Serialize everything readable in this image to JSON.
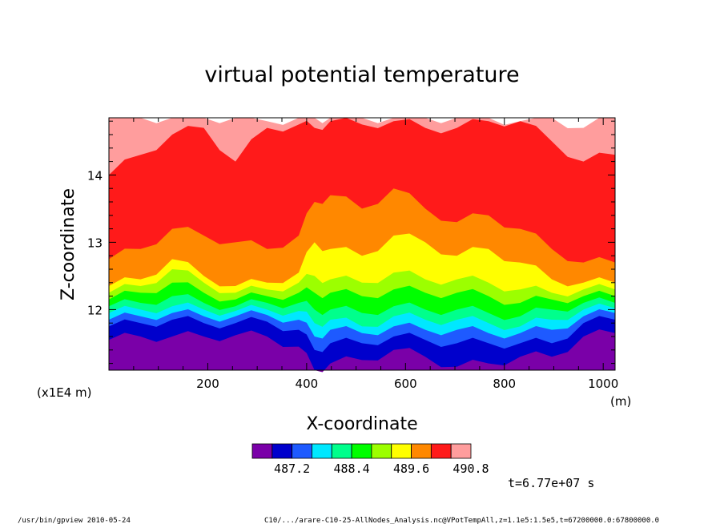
{
  "chart_data": {
    "type": "heatmap",
    "title": "virtual potential temperature",
    "xlabel": "X-coordinate",
    "ylabel": "Z-coordinate",
    "x_unit": "(m)",
    "y_unit": "(x1E4 m)",
    "xlim": [
      0,
      1024
    ],
    "ylim": [
      11.1,
      14.85
    ],
    "x_ticks": [
      "200",
      "400",
      "600",
      "800",
      "1000"
    ],
    "y_ticks": [
      "12",
      "13",
      "14"
    ],
    "x_tick_values": [
      200,
      400,
      600,
      800,
      1000
    ],
    "y_tick_values": [
      12,
      13,
      14
    ],
    "colorbar": {
      "levels": [
        486.8,
        487.2,
        487.6,
        488.0,
        488.4,
        488.8,
        489.2,
        489.6,
        490.0,
        490.4,
        490.8
      ],
      "labels": [
        "487.2",
        "488.4",
        "489.6",
        "490.8"
      ],
      "label_values": [
        487.2,
        488.4,
        489.6,
        490.8
      ],
      "colors": [
        "#7a00a8",
        "#0000cc",
        "#1e5aff",
        "#00e8ff",
        "#00ff8c",
        "#00ff00",
        "#9cff00",
        "#ffff00",
        "#ff8800",
        "#ff1a1a",
        "#ff9d9d"
      ]
    },
    "time_label": "t=6.77e+07 s",
    "band_tops_y": {
      "x": [
        0,
        64,
        128,
        192,
        256,
        320,
        384,
        416,
        448,
        512,
        576,
        640,
        704,
        768,
        832,
        896,
        960,
        1024
      ],
      "purple": [
        11.55,
        11.6,
        11.6,
        11.6,
        11.62,
        11.6,
        11.45,
        11.1,
        11.2,
        11.25,
        11.4,
        11.3,
        11.15,
        11.2,
        11.3,
        11.3,
        11.6,
        11.65
      ],
      "blue": [
        11.75,
        11.8,
        11.85,
        11.8,
        11.8,
        11.82,
        11.7,
        11.4,
        11.5,
        11.5,
        11.6,
        11.55,
        11.5,
        11.5,
        11.5,
        11.5,
        11.8,
        11.85
      ],
      "light_blue": [
        11.85,
        11.9,
        11.95,
        11.9,
        11.9,
        11.92,
        11.85,
        11.6,
        11.7,
        11.65,
        11.75,
        11.7,
        11.7,
        11.65,
        11.65,
        11.7,
        11.9,
        11.95
      ],
      "cyan": [
        11.95,
        12.0,
        12.05,
        12.0,
        11.98,
        12.0,
        11.98,
        11.8,
        11.85,
        11.75,
        11.9,
        11.85,
        11.85,
        11.8,
        11.75,
        11.85,
        12.0,
        12.02
      ],
      "spring": [
        12.05,
        12.1,
        12.2,
        12.1,
        12.05,
        12.1,
        12.1,
        12.0,
        12.0,
        11.95,
        12.05,
        12.0,
        12.0,
        11.95,
        11.9,
        12.0,
        12.1,
        12.1
      ],
      "green": [
        12.15,
        12.25,
        12.4,
        12.25,
        12.15,
        12.2,
        12.25,
        12.25,
        12.25,
        12.2,
        12.3,
        12.25,
        12.25,
        12.2,
        12.1,
        12.15,
        12.2,
        12.2
      ],
      "chartreuse": [
        12.25,
        12.35,
        12.6,
        12.4,
        12.25,
        12.3,
        12.4,
        12.5,
        12.45,
        12.4,
        12.55,
        12.45,
        12.45,
        12.4,
        12.3,
        12.25,
        12.3,
        12.3
      ],
      "yellow": [
        12.35,
        12.45,
        12.75,
        12.5,
        12.35,
        12.4,
        12.55,
        13.0,
        12.9,
        12.8,
        13.1,
        13.0,
        12.8,
        12.9,
        12.7,
        12.45,
        12.4,
        12.4
      ],
      "orange": [
        12.75,
        12.9,
        13.2,
        13.1,
        13.0,
        12.9,
        13.1,
        13.6,
        13.7,
        13.5,
        13.8,
        13.5,
        13.3,
        13.4,
        13.2,
        12.9,
        12.7,
        12.7
      ],
      "red": [
        14.0,
        14.3,
        14.6,
        14.7,
        14.2,
        14.7,
        14.75,
        14.7,
        14.8,
        14.75,
        14.8,
        14.7,
        14.7,
        14.8,
        14.8,
        14.5,
        14.2,
        14.3
      ],
      "pink": [
        14.85,
        14.85,
        14.85,
        14.85,
        14.85,
        14.8,
        14.85,
        14.85,
        14.85,
        14.85,
        14.85,
        14.85,
        14.85,
        14.85,
        14.8,
        14.85,
        14.7,
        14.85
      ]
    }
  },
  "footer": {
    "left": "/usr/bin/gpview   2010-05-24",
    "right": "C10/.../arare-C10-25-AllNodes_Analysis.nc@VPotTempAll,z=1.1e5:1.5e5,t=67200000.0:67800000.0"
  }
}
